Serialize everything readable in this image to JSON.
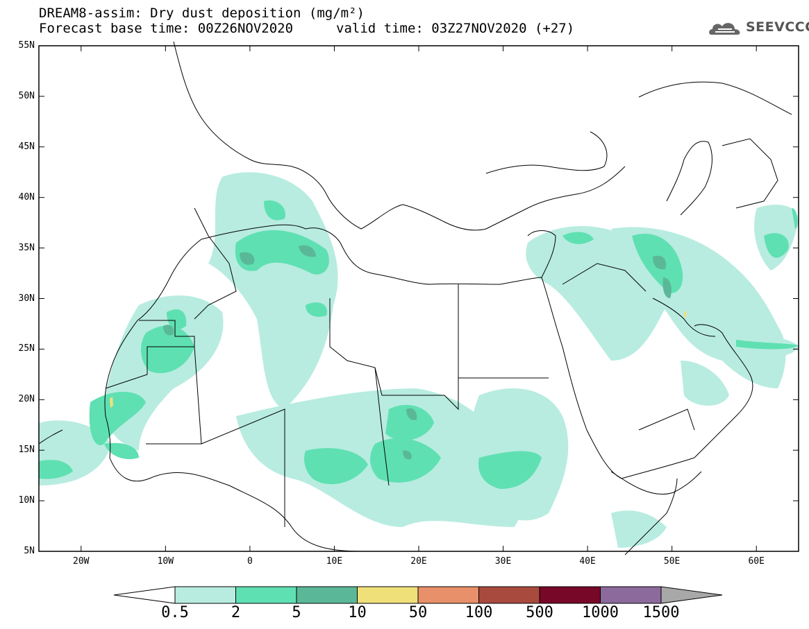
{
  "header": {
    "title": "DREAM8-assim: Dry dust deposition (mg/m²)",
    "base_time": "Forecast base time: 00Z26NOV2020",
    "valid_time": "valid time: 03Z27NOV2020 (+27)",
    "logo_text": "SEEVCCC"
  },
  "map": {
    "lat_labels": [
      "55N",
      "50N",
      "45N",
      "40N",
      "35N",
      "30N",
      "25N",
      "20N",
      "15N",
      "10N",
      "5N"
    ],
    "lon_labels": [
      "20W",
      "10W",
      "0",
      "10E",
      "20E",
      "30E",
      "40E",
      "50E",
      "60E"
    ],
    "extent": {
      "lon_min": -25,
      "lon_max": 65,
      "lat_min": 5,
      "lat_max": 55
    }
  },
  "colorbar": {
    "labels": [
      "0.5",
      "2",
      "5",
      "10",
      "50",
      "100",
      "500",
      "1000",
      "1500"
    ],
    "colors": [
      "#b8ece0",
      "#5fe0b2",
      "#5ab898",
      "#f0e07a",
      "#e8906a",
      "#a84a3e",
      "#780828",
      "#8c6a9c",
      "#a8a8a8"
    ]
  }
}
